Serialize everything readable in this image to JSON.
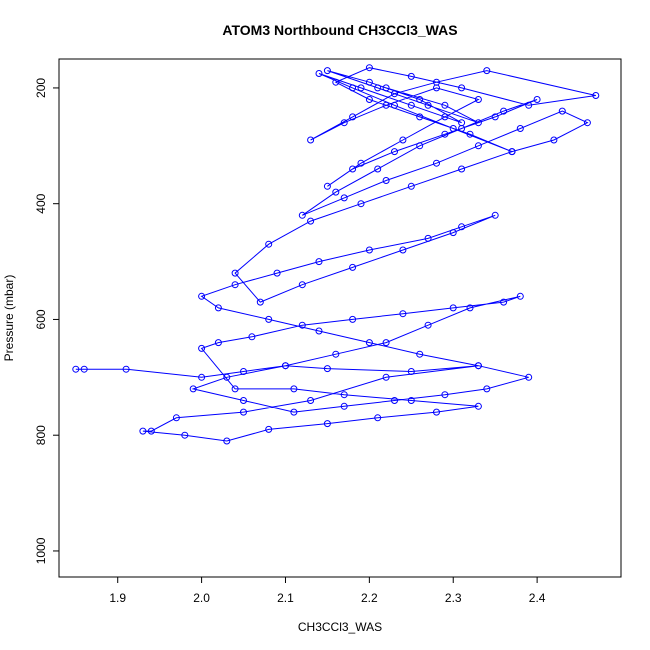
{
  "chart_data": {
    "type": "line",
    "title": "ATOM3 Northbound CH3CCl3_WAS",
    "xlabel": "CH3CCl3_WAS",
    "ylabel": "Pressure (mbar)",
    "xlim": [
      1.83,
      2.5
    ],
    "ylim": [
      1045,
      150
    ],
    "y_axis_reversed": true,
    "grid": false,
    "legend": "none",
    "xticks": [
      1.9,
      2.0,
      2.1,
      2.2,
      2.3,
      2.4
    ],
    "xtick_labels": [
      "1.9",
      "2.0",
      "2.1",
      "2.2",
      "2.3",
      "2.4"
    ],
    "yticks": [
      200,
      400,
      600,
      800,
      1000
    ],
    "ytick_labels": [
      "200",
      "400",
      "600",
      "800",
      "1000"
    ],
    "line_color": "#0000ff",
    "marker": "open-circle",
    "series": [
      {
        "x": [
          1.85,
          1.86,
          1.91,
          2.0,
          2.05,
          2.1,
          2.15,
          2.25,
          2.33,
          2.22,
          2.13,
          2.05,
          1.97,
          1.94,
          1.93,
          1.98,
          2.03,
          2.08,
          2.15,
          2.21,
          2.28,
          2.33,
          2.25,
          2.17,
          2.11,
          2.04,
          2.0,
          2.02,
          2.06,
          2.12,
          2.18,
          2.24,
          2.3,
          2.36,
          2.38,
          2.32,
          2.27,
          2.22,
          2.16,
          2.1,
          2.03,
          1.99,
          2.05,
          2.11,
          2.17,
          2.23,
          2.29,
          2.34,
          2.39,
          2.33,
          2.26,
          2.2,
          2.14,
          2.08,
          2.02,
          2.0,
          2.04,
          2.09,
          2.14,
          2.2,
          2.27,
          2.31,
          2.35,
          2.3,
          2.24,
          2.18,
          2.12,
          2.07,
          2.04,
          2.08,
          2.13,
          2.19,
          2.25,
          2.31,
          2.37,
          2.42,
          2.46,
          2.43,
          2.38,
          2.33,
          2.28,
          2.22,
          2.17,
          2.12,
          2.16,
          2.21,
          2.26,
          2.31,
          2.36,
          2.4,
          2.35,
          2.29,
          2.23,
          2.18,
          2.15,
          2.19,
          2.24,
          2.29,
          2.33,
          2.28,
          2.22,
          2.17,
          2.13,
          2.18,
          2.23,
          2.28,
          2.34,
          2.47,
          2.39,
          2.31,
          2.25,
          2.2,
          2.16,
          2.2,
          2.26,
          2.32,
          2.37,
          2.3,
          2.23,
          2.18,
          2.14,
          2.19,
          2.25,
          2.31,
          2.26,
          2.2,
          2.15,
          2.21,
          2.27,
          2.33,
          2.29,
          2.22
        ],
        "y": [
          686,
          686,
          686,
          700,
          690,
          680,
          685,
          690,
          680,
          700,
          740,
          760,
          770,
          793,
          793,
          800,
          810,
          790,
          780,
          770,
          760,
          750,
          740,
          730,
          720,
          720,
          650,
          640,
          630,
          610,
          600,
          590,
          580,
          570,
          560,
          580,
          610,
          640,
          660,
          680,
          700,
          720,
          740,
          760,
          750,
          740,
          730,
          720,
          700,
          680,
          660,
          640,
          620,
          600,
          580,
          560,
          540,
          520,
          500,
          480,
          460,
          440,
          420,
          450,
          480,
          510,
          540,
          570,
          520,
          470,
          430,
          400,
          370,
          340,
          310,
          290,
          260,
          240,
          270,
          300,
          330,
          360,
          390,
          420,
          380,
          340,
          300,
          270,
          240,
          220,
          250,
          280,
          310,
          340,
          370,
          330,
          290,
          250,
          220,
          200,
          230,
          260,
          290,
          250,
          210,
          190,
          170,
          213,
          230,
          200,
          180,
          165,
          190,
          220,
          250,
          280,
          310,
          270,
          230,
          200,
          175,
          200,
          230,
          260,
          220,
          190,
          170,
          200,
          230,
          260,
          230,
          200
        ]
      }
    ]
  }
}
